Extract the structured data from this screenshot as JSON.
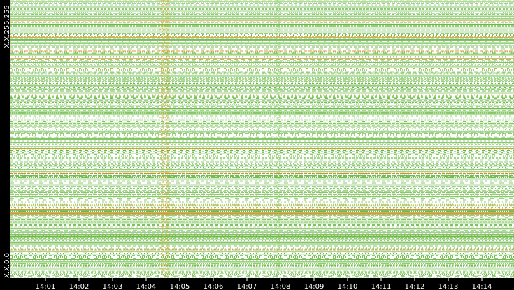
{
  "y_axis": {
    "labels": [
      "X.X.255.255",
      "X.X.0.0"
    ]
  },
  "x_axis": {
    "labels": [
      "14:01",
      "14:02",
      "14:03",
      "14:04",
      "14:05",
      "14:06",
      "14:07",
      "14:08",
      "14:09",
      "14:10",
      "14:11",
      "14:12",
      "14:13",
      "14:14"
    ]
  }
}
